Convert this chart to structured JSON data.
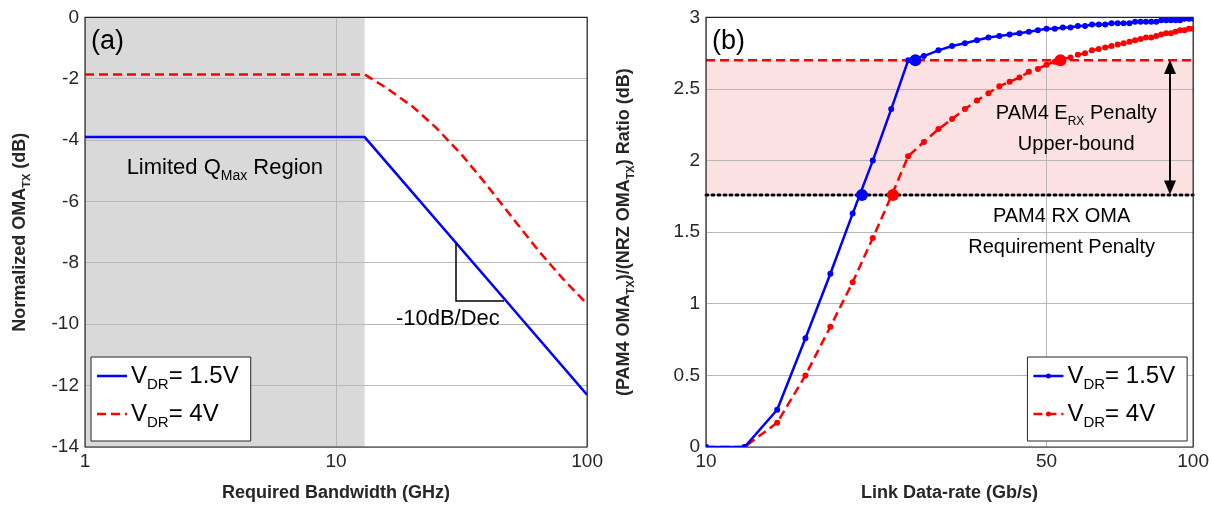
{
  "chart_data": [
    {
      "type": "line",
      "xlabel": "Required Bandwidth (GHz)",
      "ylabel": "Normalized OMA$_{TX}$ (dB)",
      "log": "x",
      "xlim": [
        1,
        100
      ],
      "xticks": [
        1,
        10,
        100
      ],
      "ylim": [
        -14,
        0
      ],
      "yticks": [
        -14,
        -12,
        -10,
        -8,
        -6,
        -4,
        -2,
        0
      ],
      "grid": true,
      "legend": "bottom left",
      "marker": "none",
      "line_style": "solid",
      "annotations": [
        "(a)",
        {
          "text": "-10dB/Dec",
          "x": 30,
          "y": -7.34
        }
      ],
      "bands": [
        {
          "axis": "x",
          "from": 1,
          "to": 13,
          "label": "Limited Q$_{Max}$ Region",
          "color": "#d9d9d9"
        }
      ],
      "series": [
        {
          "name": "V$_{DR}$= 1.5V",
          "color": "#0000ff",
          "x": [
            1,
            13,
            100
          ],
          "values": [
            -3.9,
            -3.9,
            -12.3
          ]
        },
        {
          "name": "V$_{DR}$= 4V",
          "color": "#ff0000",
          "line_style": "dashed",
          "x": [
            1,
            13,
            15.8,
            20.2,
            25,
            32,
            39.6,
            50.7,
            65,
            80.3,
            100
          ],
          "values": [
            -1.86,
            -1.86,
            -2.29,
            -2.91,
            -3.59,
            -4.52,
            -5.44,
            -6.56,
            -7.67,
            -8.53,
            -9.34
          ]
        }
      ]
    },
    {
      "type": "line",
      "xlabel": "Link Data-rate (Gb/s)",
      "ylabel": "(PAM4 OMA$_{TX}$)/(NRZ OMA$_{TX}$) Ratio (dB)",
      "log": "x",
      "xlim": [
        10,
        100
      ],
      "xticks": [
        10,
        50,
        100
      ],
      "ylim": [
        0,
        3
      ],
      "yticks": [
        0,
        0.5,
        1,
        1.5,
        2,
        2.5,
        3
      ],
      "grid": true,
      "legend": "bottom right",
      "marker": "circle",
      "line_style": "solid",
      "annotations": [
        "(b)"
      ],
      "bands": [
        {
          "axis": "y",
          "from": 1.76,
          "to": 2.7,
          "label": "PAM4 E$_{RX}$ Penalty Upper-bound",
          "color": "#fbe1e1"
        }
      ],
      "ref_lines": [
        {
          "axis": "y",
          "value": 2.7,
          "color": "#ff0000",
          "line_style": "dashed"
        },
        {
          "axis": "y",
          "value": 1.76,
          "color": "#000000",
          "line_style": "dotted",
          "label": "PAM4 RX OMA Requirement Penalty"
        }
      ],
      "x": [
        10,
        12,
        14,
        16,
        18,
        20,
        22,
        24,
        26,
        28,
        30,
        32,
        34,
        36,
        38,
        40,
        42,
        44,
        46,
        48,
        50,
        52,
        54,
        56,
        58,
        60,
        62,
        64,
        66,
        68,
        70,
        72,
        74,
        76,
        78,
        80,
        82,
        84,
        86,
        88,
        90,
        92,
        94,
        96,
        98,
        100
      ],
      "series": [
        {
          "name": "V$_{DR}$= 1.5V",
          "color": "#0000ff",
          "values": [
            0,
            0,
            0.26,
            0.76,
            1.21,
            1.63,
            2.0,
            2.36,
            2.7,
            2.73,
            2.77,
            2.8,
            2.82,
            2.84,
            2.86,
            2.87,
            2.88,
            2.89,
            2.9,
            2.91,
            2.92,
            2.92,
            2.93,
            2.93,
            2.94,
            2.94,
            2.95,
            2.95,
            2.95,
            2.96,
            2.96,
            2.96,
            2.96,
            2.97,
            2.97,
            2.97,
            2.97,
            2.97,
            2.98,
            2.98,
            2.98,
            2.98,
            2.98,
            2.99,
            2.99,
            2.99
          ]
        },
        {
          "name": "V$_{DR}$= 4V",
          "color": "#ff0000",
          "line_style": "dashed",
          "values": [
            0,
            0,
            0.17,
            0.5,
            0.84,
            1.15,
            1.46,
            1.75,
            2.03,
            2.13,
            2.22,
            2.29,
            2.36,
            2.42,
            2.47,
            2.52,
            2.55,
            2.58,
            2.62,
            2.64,
            2.67,
            2.69,
            2.71,
            2.72,
            2.74,
            2.75,
            2.77,
            2.78,
            2.79,
            2.8,
            2.81,
            2.82,
            2.83,
            2.84,
            2.85,
            2.86,
            2.86,
            2.87,
            2.88,
            2.89,
            2.89,
            2.9,
            2.91,
            2.91,
            2.92,
            2.92
          ]
        },
        {
          "type": "scatter",
          "color": "#0000ff",
          "x": [
            20.9,
            26.9
          ],
          "values": [
            1.76,
            2.7
          ]
        },
        {
          "type": "scatter",
          "color": "#ff0000",
          "x": [
            24.2,
            53.4
          ],
          "values": [
            1.76,
            2.7
          ]
        }
      ]
    }
  ]
}
